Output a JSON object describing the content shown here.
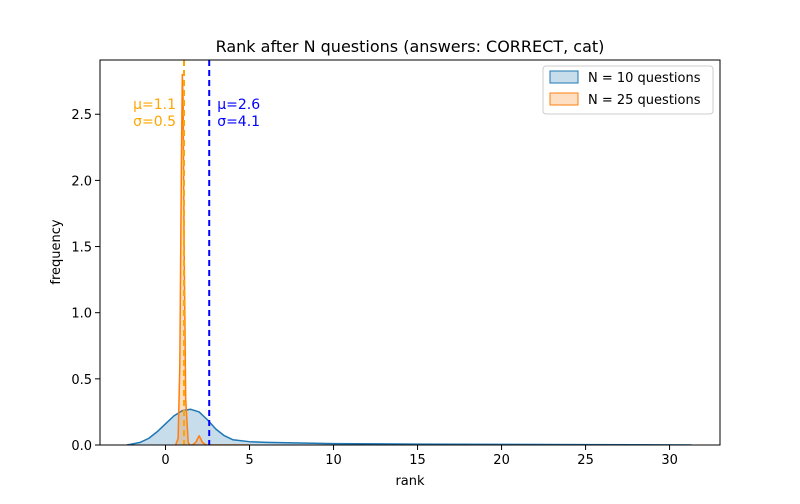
{
  "chart_data": {
    "type": "area",
    "title": "Rank after N questions (answers: CORRECT, cat)",
    "xlabel": "rank",
    "ylabel": "frequency",
    "xlim": [
      -3.9,
      33.0
    ],
    "ylim": [
      0,
      2.91
    ],
    "xticks": [
      0,
      5,
      10,
      15,
      20,
      25,
      30
    ],
    "yticks": [
      0.0,
      0.5,
      1.0,
      1.5,
      2.0,
      2.5
    ],
    "xtick_labels": [
      "0",
      "5",
      "10",
      "15",
      "20",
      "25",
      "30"
    ],
    "ytick_labels": [
      "0.0",
      "0.5",
      "1.0",
      "1.5",
      "2.0",
      "2.5"
    ],
    "grid": false,
    "legend_position": "top-right",
    "series": [
      {
        "name": "N = 10 questions",
        "color": "#1f77b4",
        "x": [
          -2.3,
          -1.5,
          -1.0,
          -0.5,
          0.0,
          0.5,
          1.0,
          1.5,
          2.0,
          2.5,
          3.0,
          3.5,
          4.0,
          5.0,
          6.0,
          8.0,
          10.0,
          15.0,
          20.0,
          25.0,
          31.3
        ],
        "y": [
          0.0,
          0.02,
          0.05,
          0.1,
          0.16,
          0.22,
          0.26,
          0.27,
          0.25,
          0.19,
          0.12,
          0.07,
          0.04,
          0.025,
          0.02,
          0.015,
          0.01,
          0.007,
          0.005,
          0.003,
          0.0
        ]
      },
      {
        "name": "N = 25 questions",
        "color": "#ff7f0e",
        "x": [
          0.6,
          0.75,
          0.85,
          0.95,
          1.0,
          1.05,
          1.1,
          1.2,
          1.35,
          1.45,
          1.6,
          1.8,
          2.0,
          2.2,
          2.4,
          2.6,
          3.0,
          4.0,
          5.0
        ],
        "y": [
          0.0,
          0.05,
          0.6,
          2.2,
          2.8,
          2.6,
          1.6,
          0.35,
          0.02,
          0.0,
          0.0,
          0.02,
          0.07,
          0.02,
          0.0,
          0.0,
          0.0,
          0.0,
          0.0
        ]
      }
    ],
    "reference_lines": [
      {
        "x": 1.1,
        "color": "#ffa500",
        "style": "dashed",
        "label_mu": "μ=1.1",
        "label_sigma": "σ=0.5"
      },
      {
        "x": 2.6,
        "color": "#0000ff",
        "style": "dashed",
        "label_mu": "μ=2.6",
        "label_sigma": "σ=4.1"
      }
    ]
  }
}
